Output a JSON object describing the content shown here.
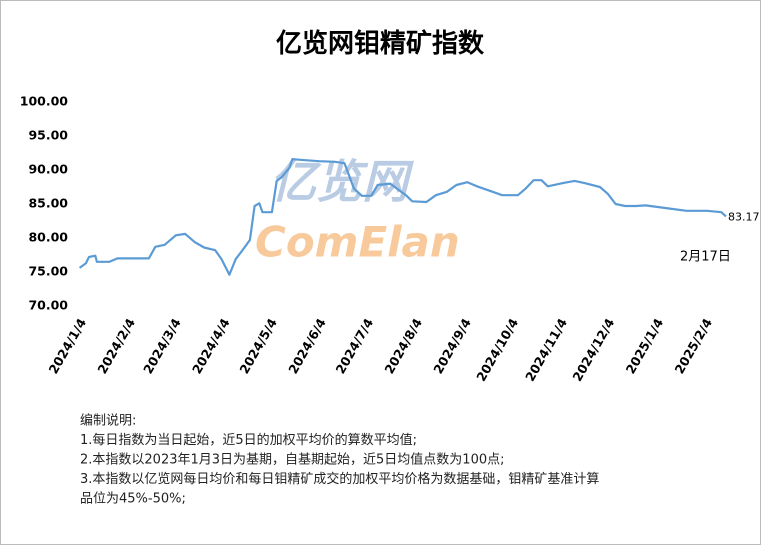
{
  "chart_data": {
    "type": "line",
    "title": "亿览网钼精矿指数",
    "watermark": [
      "亿览网",
      "ComElan"
    ],
    "x": [
      "2024/1/4",
      "2024/1/8",
      "2024/1/10",
      "2024/1/14",
      "2024/1/15",
      "2024/1/23",
      "2024/1/28",
      "2024/2/17",
      "2024/2/21",
      "2024/2/27",
      "2024/3/5",
      "2024/3/11",
      "2024/3/17",
      "2024/3/23",
      "2024/3/30",
      "2024/4/3",
      "2024/4/8",
      "2024/4/12",
      "2024/4/16",
      "2024/4/21",
      "2024/4/24",
      "2024/4/27",
      "2024/4/29",
      "2024/5/5",
      "2024/5/8",
      "2024/5/11",
      "2024/5/16",
      "2024/5/18",
      "2024/5/23",
      "2024/6/4",
      "2024/6/14",
      "2024/6/20",
      "2024/6/26",
      "2024/7/1",
      "2024/7/7",
      "2024/7/11",
      "2024/7/19",
      "2024/7/29",
      "2024/8/2",
      "2024/8/11",
      "2024/8/17",
      "2024/8/24",
      "2024/8/30",
      "2024/9/6",
      "2024/9/12",
      "2024/9/22",
      "2024/9/28",
      "2024/10/8",
      "2024/10/13",
      "2024/10/18",
      "2024/10/23",
      "2024/10/27",
      "2024/11/6",
      "2024/11/13",
      "2024/11/19",
      "2024/11/29",
      "2024/12/4",
      "2024/12/9",
      "2024/12/15",
      "2024/12/22",
      "2024/12/28",
      "2025/1/10",
      "2025/1/23",
      "2025/2/5",
      "2025/2/14",
      "2025/2/17"
    ],
    "values": [
      75.6,
      76.3,
      77.2,
      77.4,
      76.5,
      76.5,
      77.0,
      77.0,
      78.7,
      79.0,
      80.4,
      80.6,
      79.4,
      78.6,
      78.2,
      76.9,
      74.6,
      76.9,
      78.1,
      79.7,
      84.7,
      85.1,
      83.8,
      83.8,
      88.4,
      88.9,
      90.3,
      91.6,
      91.5,
      91.3,
      91.2,
      91.0,
      87.3,
      86.2,
      86.2,
      87.8,
      88.0,
      86.3,
      85.4,
      85.3,
      86.3,
      86.8,
      87.8,
      88.2,
      87.6,
      86.8,
      86.3,
      86.3,
      87.3,
      88.5,
      88.5,
      87.6,
      88.1,
      88.4,
      88.1,
      87.5,
      86.5,
      85.0,
      84.7,
      84.7,
      84.8,
      84.4,
      84.0,
      84.0,
      83.8,
      83.17
    ],
    "color": "#5b9bd5",
    "xlim": [
      "2024/1/3",
      "2025/2/17"
    ],
    "xticks": [
      "2024/1/4",
      "2024/2/4",
      "2024/3/4",
      "2024/4/4",
      "2024/5/4",
      "2024/6/4",
      "2024/7/4",
      "2024/8/4",
      "2024/9/4",
      "2024/10/4",
      "2024/11/4",
      "2024/12/4",
      "2025/1/4",
      "2025/2/4"
    ],
    "ylim": [
      70,
      100
    ],
    "yticks": [
      {
        "value": 70,
        "label": "70.00"
      },
      {
        "value": 75,
        "label": "75.00"
      },
      {
        "value": 80,
        "label": "80.00"
      },
      {
        "value": 85,
        "label": "85.00"
      },
      {
        "value": 90,
        "label": "90.00"
      },
      {
        "value": 95,
        "label": "95.00"
      },
      {
        "value": 100,
        "label": "100.00"
      }
    ],
    "annotation": "2月17日",
    "notes": [
      "编制说明:",
      "1.每日指数为当日起始，近5日的加权平均价的算数平均值;",
      "2.本指数以2023年1月3日为基期，自基期起始，近5日均值点数为100点;",
      "3.本指数以亿览网每日均价和每日钼精矿成交的加权平均价格为数据基础，钼精矿基准计算",
      "品位为45%-50%;"
    ]
  }
}
